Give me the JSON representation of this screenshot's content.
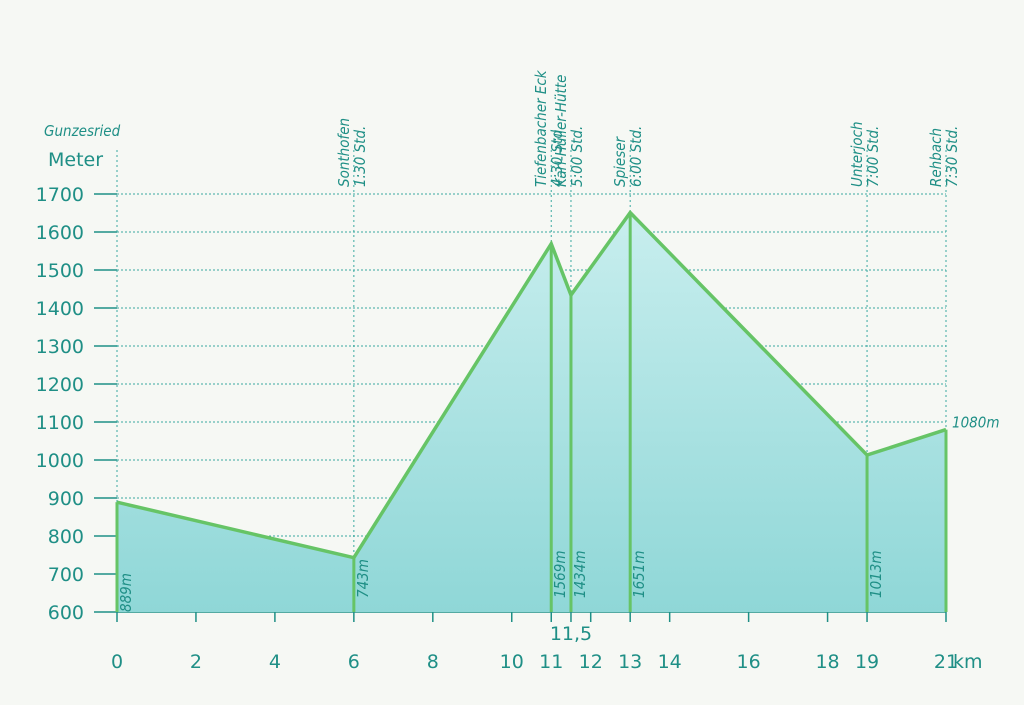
{
  "chart_data": {
    "type": "area",
    "y_label": "Meter",
    "x_label": "km",
    "x": [
      0,
      6,
      11,
      11.5,
      13,
      19,
      21
    ],
    "waypoint_names": [
      "Gunzesried",
      "Sonthofen",
      "Tiefenbacher Eck",
      "Karl-Hüller-Hütte",
      "Spieser",
      "Unterjoch",
      "Rehbach"
    ],
    "waypoint_times": [
      null,
      "1:30 Std.",
      "4:30 Std.",
      "5:00 Std.",
      "6:00 Std.",
      "7:00 Std.",
      "7:30 Std."
    ],
    "values": [
      889,
      743,
      1569,
      1434,
      1651,
      1013,
      1080
    ],
    "value_labels": [
      "889m",
      "743m",
      "1569m",
      "1434m",
      "1651m",
      "1013m",
      "1080m"
    ],
    "color": "#66c466",
    "fill": "#a9e3e3",
    "xlim": [
      0,
      21
    ],
    "xticks": [
      0,
      2,
      4,
      6,
      8,
      10,
      11,
      {
        "value": 11.5,
        "label": "11,5"
      },
      12,
      13,
      14,
      16,
      18,
      19,
      21
    ],
    "ylim": [
      600,
      1700
    ],
    "yticks": [
      600,
      700,
      800,
      900,
      1000,
      1100,
      1200,
      1300,
      1400,
      1500,
      1600,
      1700
    ],
    "grid": true
  }
}
